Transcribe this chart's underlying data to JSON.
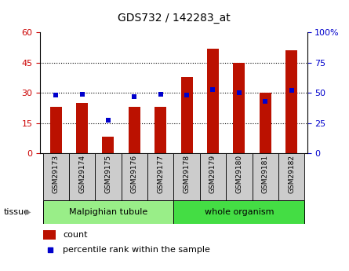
{
  "title": "GDS732 / 142283_at",
  "samples": [
    "GSM29173",
    "GSM29174",
    "GSM29175",
    "GSM29176",
    "GSM29177",
    "GSM29178",
    "GSM29179",
    "GSM29180",
    "GSM29181",
    "GSM29182"
  ],
  "counts": [
    23,
    25,
    8,
    23,
    23,
    38,
    52,
    45,
    30,
    51
  ],
  "percentiles": [
    48,
    49,
    27,
    47,
    49,
    48,
    53,
    50,
    43,
    52
  ],
  "ylim_left": [
    0,
    60
  ],
  "ylim_right": [
    0,
    100
  ],
  "yticks_left": [
    0,
    15,
    30,
    45,
    60
  ],
  "yticks_right": [
    0,
    25,
    50,
    75,
    100
  ],
  "yticklabels_left": [
    "0",
    "15",
    "30",
    "45",
    "60"
  ],
  "yticklabels_right": [
    "0",
    "25",
    "50",
    "75",
    "100%"
  ],
  "bar_color": "#bb1100",
  "dot_color": "#0000cc",
  "tissue_groups": [
    {
      "label": "Malpighian tubule",
      "start": 0,
      "end": 5,
      "color": "#99ee88"
    },
    {
      "label": "whole organism",
      "start": 5,
      "end": 10,
      "color": "#44dd44"
    }
  ],
  "bg_color": "#ffffff",
  "tick_label_color_left": "#cc0000",
  "tick_label_color_right": "#0000cc",
  "bar_width": 0.45,
  "sample_box_color": "#cccccc",
  "legend_items": [
    "count",
    "percentile rank within the sample"
  ]
}
